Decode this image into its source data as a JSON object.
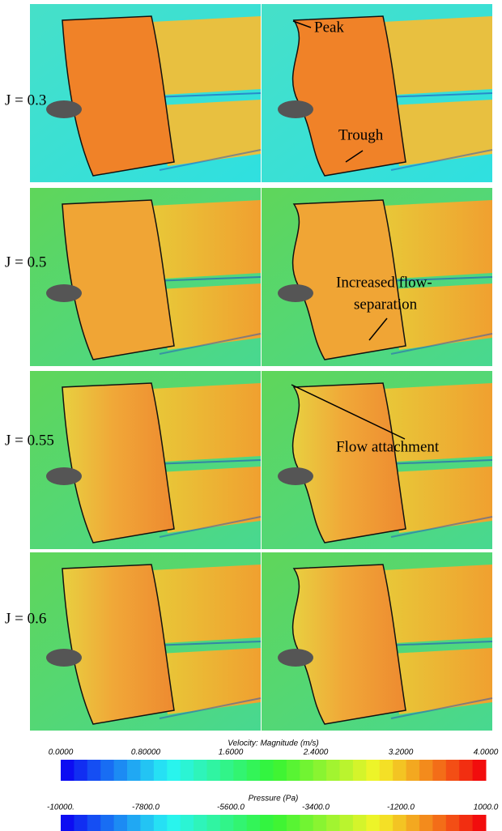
{
  "row_labels": [
    "J = 0.3",
    "J = 0.5",
    "J = 0.55",
    "J = 0.6"
  ],
  "annotations": {
    "peak": "Peak",
    "trough": "Trough",
    "separation": [
      "Increased flow-",
      "separation"
    ],
    "attachment": "Flow attachment"
  },
  "colorbars": [
    {
      "title": "Velocity: Magnitude (m/s)",
      "ticks": [
        "0.0000",
        "0.80000",
        "1.6000",
        "2.4000",
        "3.2000",
        "4.0000"
      ]
    },
    {
      "title": "Pressure (Pa)",
      "ticks": [
        "-10000.",
        "-7800.0",
        "-5600.0",
        "-3400.0",
        "-1200.0",
        "1000.0"
      ]
    }
  ]
}
